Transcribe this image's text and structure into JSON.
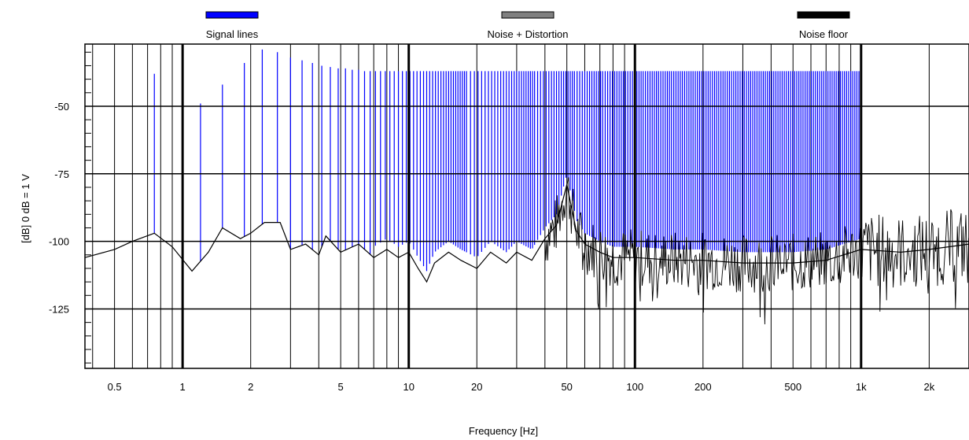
{
  "chart_data": {
    "type": "line",
    "title": "",
    "xlabel": "Frequency [Hz]",
    "ylabel": "[dB]   0 dB = 1 V",
    "x_scale": "log",
    "xlim": [
      0.37,
      3000
    ],
    "ylim": [
      -147,
      -27
    ],
    "grid": true,
    "legend_position": "top",
    "x_ticks": [
      {
        "value": 0.5,
        "label": "0.5"
      },
      {
        "value": 1,
        "label": "1"
      },
      {
        "value": 2,
        "label": "2"
      },
      {
        "value": 5,
        "label": "5"
      },
      {
        "value": 10,
        "label": "10"
      },
      {
        "value": 20,
        "label": "20"
      },
      {
        "value": 50,
        "label": "50"
      },
      {
        "value": 100,
        "label": "100"
      },
      {
        "value": 200,
        "label": "200"
      },
      {
        "value": 500,
        "label": "500"
      },
      {
        "value": 1000,
        "label": "1k"
      },
      {
        "value": 2000,
        "label": "2k"
      }
    ],
    "y_ticks": [
      {
        "value": -50,
        "label": "-50"
      },
      {
        "value": -75,
        "label": "-75"
      },
      {
        "value": -100,
        "label": "-100"
      },
      {
        "value": -125,
        "label": "-125"
      }
    ],
    "series": [
      {
        "name": "Signal lines",
        "color": "#0000ff",
        "style": "vertical-lines",
        "lines": [
          {
            "x": 0.75,
            "y": -38
          },
          {
            "x": 1.2,
            "y": -49
          },
          {
            "x": 1.5,
            "y": -42
          },
          {
            "x": 1.875,
            "y": -34
          },
          {
            "x": 2.25,
            "y": -29
          },
          {
            "x": 2.625,
            "y": -30
          },
          {
            "x": 3.0,
            "y": -32
          },
          {
            "x": 3.375,
            "y": -33
          },
          {
            "x": 3.75,
            "y": -34
          },
          {
            "x": 4.125,
            "y": -35
          },
          {
            "x": 4.5,
            "y": -35.5
          },
          {
            "x": 4.875,
            "y": -36
          },
          {
            "x": 5.25,
            "y": -36
          },
          {
            "x": 5.625,
            "y": -36.5
          },
          {
            "x": 6.0,
            "y": -36.5
          },
          {
            "x": 6.375,
            "y": -37
          },
          {
            "x": 6.75,
            "y": -37
          }
        ],
        "dense_start": 7.125,
        "dense_step": 0.375,
        "dense_end": 1000,
        "dense_level": -37
      },
      {
        "name": "Noise + Distortion",
        "color": "#808080",
        "points": []
      },
      {
        "name": "Noise floor",
        "color": "#000000",
        "points": [
          {
            "x": 0.37,
            "y": -106
          },
          {
            "x": 0.5,
            "y": -103
          },
          {
            "x": 0.6,
            "y": -100
          },
          {
            "x": 0.75,
            "y": -97
          },
          {
            "x": 0.9,
            "y": -102
          },
          {
            "x": 1.1,
            "y": -111
          },
          {
            "x": 1.3,
            "y": -104
          },
          {
            "x": 1.5,
            "y": -95
          },
          {
            "x": 1.8,
            "y": -99
          },
          {
            "x": 2.0,
            "y": -97
          },
          {
            "x": 2.3,
            "y": -93
          },
          {
            "x": 2.7,
            "y": -93
          },
          {
            "x": 3.0,
            "y": -103
          },
          {
            "x": 3.5,
            "y": -101
          },
          {
            "x": 4.0,
            "y": -105
          },
          {
            "x": 4.3,
            "y": -98
          },
          {
            "x": 5.0,
            "y": -104
          },
          {
            "x": 6.0,
            "y": -101
          },
          {
            "x": 7.0,
            "y": -106
          },
          {
            "x": 8.0,
            "y": -103
          },
          {
            "x": 9.0,
            "y": -106
          },
          {
            "x": 10.0,
            "y": -104
          },
          {
            "x": 11.0,
            "y": -110
          },
          {
            "x": 12.0,
            "y": -115
          },
          {
            "x": 13.0,
            "y": -108
          },
          {
            "x": 15.0,
            "y": -104
          },
          {
            "x": 17.0,
            "y": -107
          },
          {
            "x": 20.0,
            "y": -110
          },
          {
            "x": 23.0,
            "y": -104
          },
          {
            "x": 27.0,
            "y": -108
          },
          {
            "x": 30.0,
            "y": -104
          },
          {
            "x": 35.0,
            "y": -107
          },
          {
            "x": 40.0,
            "y": -99
          },
          {
            "x": 45.0,
            "y": -94
          },
          {
            "x": 50.0,
            "y": -79
          },
          {
            "x": 55.0,
            "y": -96
          },
          {
            "x": 60.0,
            "y": -101
          },
          {
            "x": 70.0,
            "y": -104
          },
          {
            "x": 80.0,
            "y": -106
          },
          {
            "x": 100.0,
            "y": -106
          },
          {
            "x": 150.0,
            "y": -107
          },
          {
            "x": 200.0,
            "y": -107
          },
          {
            "x": 300.0,
            "y": -108
          },
          {
            "x": 500.0,
            "y": -108
          },
          {
            "x": 700.0,
            "y": -107
          },
          {
            "x": 1000.0,
            "y": -103
          },
          {
            "x": 1500.0,
            "y": -104
          },
          {
            "x": 2000.0,
            "y": -103
          },
          {
            "x": 3000.0,
            "y": -101
          }
        ]
      }
    ]
  }
}
